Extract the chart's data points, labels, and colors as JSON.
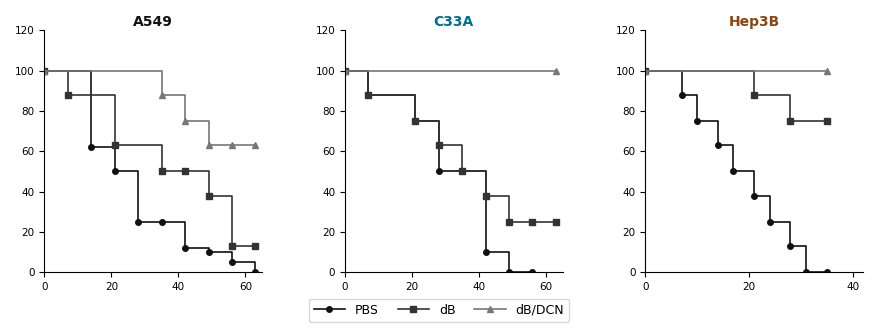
{
  "title_a549": "A549",
  "title_c33a": "C33A",
  "title_hep3b": "Hep3B",
  "title_color_a549": "#111111",
  "title_color_c33a": "#007090",
  "title_color_hep3b": "#8B4513",
  "a549_pbs_steps": {
    "x": [
      0,
      14,
      21,
      28,
      35,
      42,
      49,
      56,
      63
    ],
    "y": [
      100,
      62,
      50,
      25,
      25,
      12,
      10,
      5,
      0
    ]
  },
  "a549_db_steps": {
    "x": [
      0,
      7,
      21,
      35,
      42,
      49,
      56,
      63
    ],
    "y": [
      100,
      88,
      63,
      50,
      50,
      38,
      13,
      13
    ]
  },
  "a549_dbdcn_steps": {
    "x": [
      0,
      35,
      42,
      49,
      56,
      63
    ],
    "y": [
      100,
      88,
      75,
      63,
      63,
      63
    ]
  },
  "c33a_pbs_steps": {
    "x": [
      0,
      7,
      21,
      28,
      35,
      42,
      49,
      56
    ],
    "y": [
      100,
      88,
      75,
      50,
      50,
      10,
      0,
      0
    ]
  },
  "c33a_db_steps": {
    "x": [
      0,
      7,
      21,
      28,
      35,
      42,
      49,
      56,
      63
    ],
    "y": [
      100,
      88,
      75,
      63,
      50,
      38,
      25,
      25,
      25
    ]
  },
  "c33a_dbdcn_steps": {
    "x": [
      0,
      63
    ],
    "y": [
      100,
      100
    ]
  },
  "hep3b_pbs_steps": {
    "x": [
      0,
      7,
      10,
      14,
      17,
      21,
      24,
      28,
      31,
      35
    ],
    "y": [
      100,
      88,
      75,
      63,
      50,
      38,
      25,
      13,
      0,
      0
    ]
  },
  "hep3b_db_steps": {
    "x": [
      0,
      21,
      28,
      35
    ],
    "y": [
      100,
      88,
      75,
      75
    ]
  },
  "hep3b_dbdcn_steps": {
    "x": [
      0,
      35
    ],
    "y": [
      100,
      100
    ]
  },
  "color_pbs": "#111111",
  "color_db": "#333333",
  "color_dbdcn": "#777777",
  "marker_pbs": "o",
  "marker_db": "s",
  "marker_dbdcn": "^",
  "markersize": 4,
  "linewidth": 1.2,
  "ylim": [
    0,
    120
  ],
  "yticks": [
    0,
    20,
    40,
    60,
    80,
    100,
    120
  ],
  "xlim_a549": [
    0,
    65
  ],
  "xticks_a549": [
    0,
    20,
    40,
    60
  ],
  "xlim_c33a": [
    0,
    65
  ],
  "xticks_c33a": [
    0,
    20,
    40,
    60
  ],
  "xlim_hep3b": [
    0,
    42
  ],
  "xticks_hep3b": [
    0,
    20,
    40
  ],
  "legend_labels": [
    "PBS",
    "dB",
    "dB/DCN"
  ],
  "legend_colors": [
    "#111111",
    "#333333",
    "#777777"
  ],
  "legend_markers": [
    "o",
    "s",
    "^"
  ]
}
